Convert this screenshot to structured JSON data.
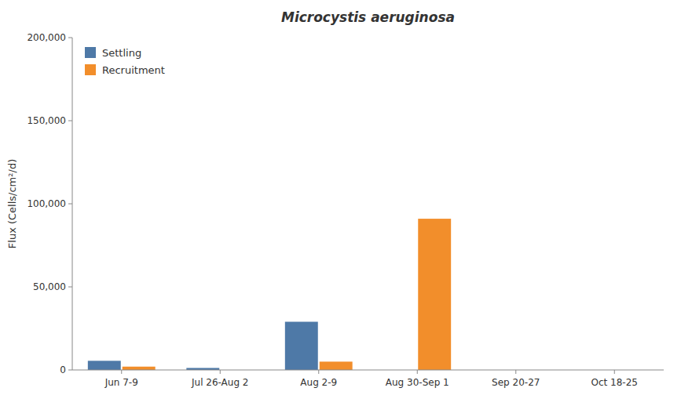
{
  "chart_data": {
    "type": "bar",
    "title": "Microcystis aeruginosa",
    "ylabel": "Flux (Cells/cm²/d)",
    "categories": [
      "Jun 7-9",
      "Jul 26-Aug 2",
      "Aug 2-9",
      "Aug 30-Sep 1",
      "Sep 20-27",
      "Oct 18-25"
    ],
    "series": [
      {
        "name": "Settling",
        "values": [
          5500,
          1200,
          29000,
          0,
          0,
          0
        ]
      },
      {
        "name": "Recruitment",
        "values": [
          2000,
          0,
          5000,
          91000,
          0,
          0
        ]
      }
    ],
    "ylim": [
      0,
      200000
    ],
    "yticks": [
      0,
      {
        "value": 50000,
        "label": "50,000"
      },
      {
        "value": 100000,
        "label": "100,000"
      },
      {
        "value": 150000,
        "label": "150,000"
      },
      {
        "value": 200000,
        "label": "200,000"
      }
    ],
    "grid": false,
    "legend": "upper left"
  }
}
